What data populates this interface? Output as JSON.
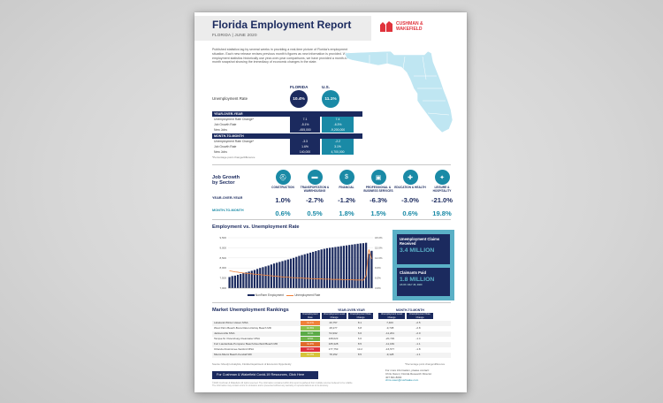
{
  "report": {
    "title": "Florida Employment Report",
    "subtitle": "FLORIDA | JUNE 2020",
    "logo_line1": "CUSHMAN &",
    "logo_line2": "WAKEFIELD",
    "intro": "Published statistics lag by several weeks in providing a real-time picture of Florida's employment situation. Each new release revises previous month's figures as new information is provided. While employment statistics historically use year-over-year comparisons, we have provided a month-to-month snapshot showing the immediacy of economic changes in the state."
  },
  "summary": {
    "florida_label": "FLORIDA",
    "us_label": "U.S.",
    "unemployment_label": "Unemployment Rate",
    "florida_rate": "10.4%",
    "us_rate": "11.1%",
    "yoy_header": "YEAR-OVER-YEAR",
    "mtm_header": "MONTH-TO-MONTH",
    "yoy_rows": [
      {
        "label": "Unemployment Rate Change*",
        "fl": "7.1",
        "us": "7.4"
      },
      {
        "label": "Job Growth Rate",
        "fl": "-5.1%",
        "us": "-6.3%"
      },
      {
        "label": "New Jobs",
        "fl": "-455,000",
        "us": "-9,200,000"
      }
    ],
    "mtm_rows": [
      {
        "label": "Unemployment Rate Change*",
        "fl": "-3.3",
        "us": "-2.2"
      },
      {
        "label": "Job Growth Rate",
        "fl": "1.6%",
        "us": "3.1%"
      },
      {
        "label": "New Jobs",
        "fl": "140,000",
        "us": "4,700,000"
      }
    ],
    "footnote": "*Percentage point change/difference"
  },
  "job_growth": {
    "title_line1": "Job Growth",
    "title_line2": "by Sector",
    "yoy_label": "YEAR-OVER-YEAR",
    "mtm_label": "MONTH-TO-MONTH",
    "sectors": [
      {
        "label": "CONSTRUCTION",
        "icon": "construction-icon",
        "glyph": "⛑",
        "yoy": "1.0%",
        "mtm": "0.6%"
      },
      {
        "label": "TRANSPORTATION & WAREHOUSING",
        "icon": "truck-icon",
        "glyph": "▬",
        "yoy": "-2.7%",
        "mtm": "0.5%"
      },
      {
        "label": "FINANCIAL",
        "icon": "dollar-icon",
        "glyph": "$",
        "yoy": "-1.2%",
        "mtm": "1.8%"
      },
      {
        "label": "PROFESSIONAL & BUSINESS SERVICES",
        "icon": "briefcase-icon",
        "glyph": "▣",
        "yoy": "-6.3%",
        "mtm": "1.5%"
      },
      {
        "label": "EDUCATION & HEALTH",
        "icon": "health-icon",
        "glyph": "✚",
        "yoy": "-3.0%",
        "mtm": "0.6%"
      },
      {
        "label": "LEISURE & HOSPITALITY",
        "icon": "dining-icon",
        "glyph": "✦",
        "yoy": "-21.0%",
        "mtm": "19.8%"
      }
    ]
  },
  "chart_data": {
    "type": "bar",
    "title": "Employment vs. Unemployment Rate",
    "series": [
      {
        "name": "NonFarm Employment",
        "type": "bar",
        "axis": "left",
        "values": [
          7.55,
          7.6,
          7.62,
          7.66,
          7.7,
          7.74,
          7.78,
          7.82,
          7.86,
          7.9,
          7.95,
          8.0,
          8.04,
          8.08,
          8.12,
          8.17,
          8.22,
          8.26,
          8.3,
          8.34,
          8.38,
          8.42,
          8.46,
          8.5,
          8.55,
          8.6,
          8.64,
          8.68,
          8.72,
          8.76,
          8.8,
          8.84,
          8.88,
          8.92,
          8.95,
          8.98,
          9.0,
          9.02,
          9.04,
          9.06,
          9.08,
          9.1,
          9.12,
          9.14,
          9.16,
          9.18,
          9.2,
          9.22,
          9.23,
          9.25,
          8.7,
          8.85
        ]
      },
      {
        "name": "Unemployment Rate",
        "type": "line",
        "axis": "right",
        "values": [
          6.2,
          6.0,
          5.8,
          5.7,
          5.5,
          5.4,
          5.3,
          5.2,
          5.1,
          5.0,
          4.9,
          4.8,
          4.7,
          4.6,
          4.5,
          4.4,
          4.3,
          4.2,
          4.1,
          4.0,
          3.9,
          3.9,
          3.8,
          3.7,
          3.7,
          3.6,
          3.6,
          3.5,
          3.5,
          3.4,
          3.4,
          3.3,
          3.3,
          3.3,
          3.2,
          3.2,
          3.2,
          3.1,
          3.1,
          3.1,
          3.1,
          3.0,
          3.0,
          3.0,
          3.0,
          2.9,
          2.9,
          2.9,
          2.8,
          4.4,
          13.8,
          10.4
        ]
      }
    ],
    "y_left_ticks": [
      "9,500",
      "9,000",
      "8,500",
      "8,000",
      "7,500",
      "7,000"
    ],
    "y_right_ticks": [
      "18.0%",
      "15.0%",
      "12.0%",
      "9.0%",
      "6.0%",
      "3.0%"
    ],
    "ylim_left": [
      7000,
      9500
    ],
    "ylim_right": [
      0,
      18
    ],
    "legend_position": "bottom"
  },
  "claims": {
    "unemp_label": "Unemployment Claims Received",
    "unemp_value": "3.4 MILLION",
    "paid_label": "Claimants Paid",
    "paid_value": "1.8 MILLION",
    "paid_note": "AS OF JULY 26, 2020"
  },
  "markets": {
    "title": "Market Unemployment Rankings",
    "yoy_group": "YEAR-OVER-YEAR",
    "mtm_group": "MONTH-TO-MONTH",
    "headers": [
      "Unemployment Rate",
      "Unemployment Level Change",
      "Unemployment Rate Change",
      "Unemployment Level Change",
      "Unemployment Rate Change"
    ],
    "rows": [
      {
        "name": "Lakeland-Winter Haven MSA",
        "rate": "11.1%",
        "color": "#f0813a",
        "c1": "40,757",
        "c2": "8.1",
        "c3": "7,400",
        "c4": "-2.5"
      },
      {
        "name": "West Palm Beach-Boca Raton-Delray Beach MD",
        "rate": "10.8%",
        "color": "#8cc04a",
        "c1": "48,277",
        "c2": "6.8",
        "c3": "-9,738",
        "c4": "-2.8"
      },
      {
        "name": "Jacksonville MSA",
        "rate": "9.1%",
        "color": "#5aab47",
        "c1": "54,932",
        "c2": "6.6",
        "c3": "-11,201",
        "c4": "-2.0"
      },
      {
        "name": "Tampa-St. Petersburg-Clearwater MSA",
        "rate": "9.5%",
        "color": "#6fb54a",
        "c1": "108,623",
        "c2": "6.6",
        "c3": "-20,729",
        "c4": "-1.4"
      },
      {
        "name": "Fort Lauderdale-Pompano Beach-Deerfield Beach MD",
        "rate": "11.3%",
        "color": "#e06b2a",
        "c1": "105,328",
        "c2": "8.5",
        "c3": "-11,169",
        "c4": "-1.1"
      },
      {
        "name": "Orlando-Kissimmee-Sanford MSA",
        "rate": "16.4%",
        "color": "#e0333c",
        "c1": "177,753",
        "c2": "13.2",
        "c3": "-16,577",
        "c4": "-1.8"
      },
      {
        "name": "Miami-Miami Beach-Kendall MD",
        "rate": "12.0%",
        "color": "#d5c43a",
        "c1": "78,152",
        "c2": "8.5",
        "c3": "-9,128",
        "c4": "-1.1"
      }
    ],
    "source": "Source: Moody's Analytics, Florida Department of Economic Opportunity",
    "source_note": "*Percentage point change/difference"
  },
  "footer": {
    "cta": "For Cushman & Wakefield Covid-19 Resources, Click Here",
    "disclaimer": "©2020 Cushman & Wakefield. All rights reserved. The information contained within this report is gathered from multiple sources believed to be reliable. The information may contain errors or omissions and is presented without any warranty or representations as to its accuracy.",
    "contact_intro": "For more information, please contact:",
    "contact_name": "Chris Owen | Florida Research Director",
    "contact_phone": "407.841.8000",
    "contact_email": "chris.owen@cushwake.com"
  },
  "colors": {
    "navy": "#1b2a5e",
    "teal": "#1a8aa6",
    "light_teal": "#5ab0c6",
    "brand_red": "#e0333c"
  }
}
